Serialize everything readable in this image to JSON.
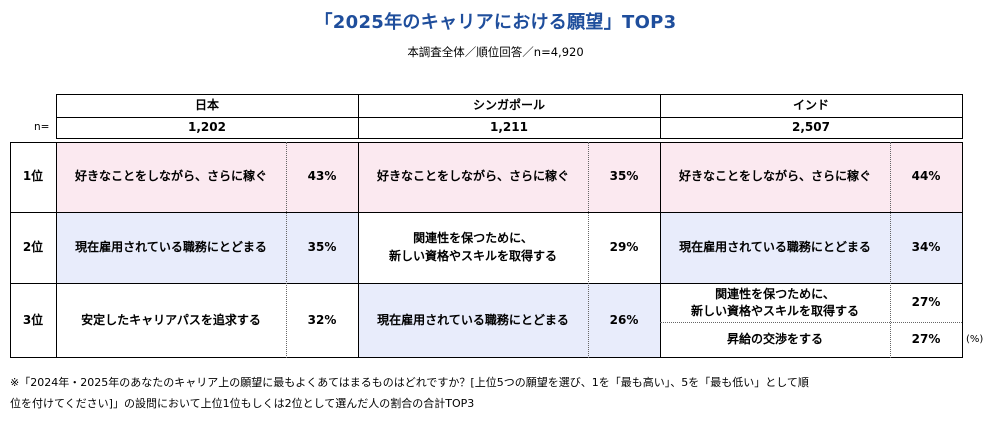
{
  "title": "「2025年のキャリアにおける願望」TOP3",
  "subtitle": "本調査全体／順位回答／n=4,920",
  "n_label": "n=",
  "countries": [
    {
      "name": "日本",
      "n": "1,202"
    },
    {
      "name": "シンガポール",
      "n": "1,211"
    },
    {
      "name": "インド",
      "n": "2,507"
    }
  ],
  "ranks": [
    "1位",
    "2位",
    "3位"
  ],
  "japan": [
    {
      "item": "好きなことをしながら、さらに稼ぐ",
      "pct": "43%"
    },
    {
      "item": "現在雇用されている職務にとどまる",
      "pct": "35%"
    },
    {
      "item": "安定したキャリアパスを追求する",
      "pct": "32%"
    }
  ],
  "singapore": [
    {
      "item": "好きなことをしながら、さらに稼ぐ",
      "pct": "35%"
    },
    {
      "item_line1": "関連性を保つために、",
      "item_line2": "新しい資格やスキルを取得する",
      "pct": "29%"
    },
    {
      "item": "現在雇用されている職務にとどまる",
      "pct": "26%"
    }
  ],
  "india": [
    {
      "item": "好きなことをしながら、さらに稼ぐ",
      "pct": "44%"
    },
    {
      "item": "現在雇用されている職務にとどまる",
      "pct": "34%"
    },
    {
      "item_line1": "関連性を保つために、",
      "item_line2": "新しい資格やスキルを取得する",
      "pct": "27%"
    },
    {
      "item": "昇給の交渉をする",
      "pct": "27%"
    }
  ],
  "unit_label": "(%)",
  "footnote_line1": "※「2024年・2025年のあなたのキャリア上の願望に最もよくあてはまるものはどれですか？[上位5つの願望を選び、1を「最も高い」、5を「最も低い」として順",
  "footnote_line2": "位を付けてください]」の設問において上位1位もしくは2位として選んだ人の割合の合計TOP3",
  "colors": {
    "title": "#1f4e9c",
    "rank1_bg": "#fbe9f0",
    "rank2_bg": "#e8ecfb"
  }
}
